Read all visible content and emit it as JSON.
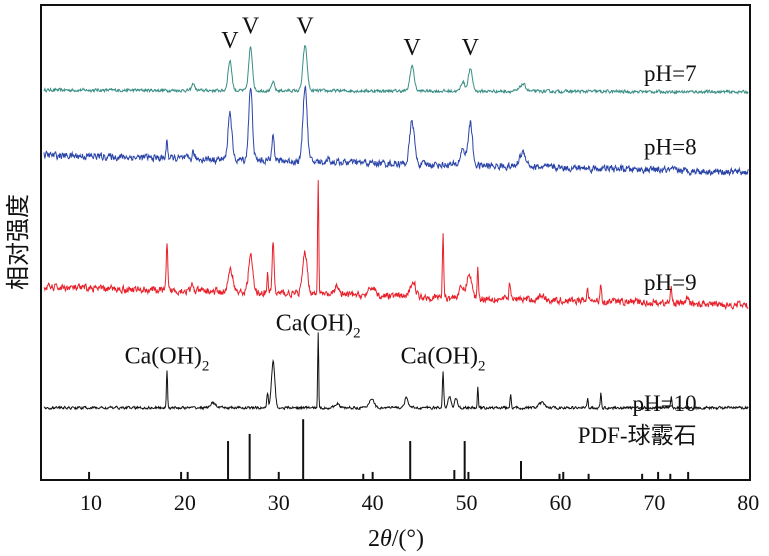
{
  "chart_data": {
    "type": "line",
    "xlabel_parts": [
      "2",
      "θ",
      "/(°)"
    ],
    "ylabel": "相对强度",
    "xlim": [
      5,
      80
    ],
    "ylim": [
      0,
      100
    ],
    "xticks": [
      10,
      20,
      30,
      40,
      50,
      60,
      70,
      80
    ],
    "grid": false,
    "legend": "none",
    "series": [
      {
        "name": "pH=7",
        "color": "#3a8f85",
        "baseline": [
          82.1,
          81.7
        ],
        "noise": 0.35,
        "peaks": [
          [
            20.9,
            1.5,
            0.15
          ],
          [
            24.8,
            6.3,
            0.2
          ],
          [
            27.0,
            9,
            0.2
          ],
          [
            29.4,
            1.8,
            0.15
          ],
          [
            32.8,
            9.5,
            0.22
          ],
          [
            44.2,
            5.3,
            0.22
          ],
          [
            49.6,
            2,
            0.2
          ],
          [
            50.4,
            4.6,
            0.22
          ],
          [
            56.0,
            1.5,
            0.3
          ]
        ]
      },
      {
        "name": "pH=8",
        "color": "#2a44a8",
        "baseline": [
          68.4,
          64.8
        ],
        "noise": 0.8,
        "peaks": [
          [
            18.1,
            4,
            0.08
          ],
          [
            20.9,
            1.5,
            0.1
          ],
          [
            24.8,
            10,
            0.2
          ],
          [
            27.0,
            15,
            0.2
          ],
          [
            29.4,
            6.3,
            0.12
          ],
          [
            32.8,
            16,
            0.22
          ],
          [
            35.3,
            1.2,
            0.1
          ],
          [
            44.2,
            9,
            0.25
          ],
          [
            49.6,
            3.5,
            0.25
          ],
          [
            50.4,
            9,
            0.22
          ],
          [
            56.0,
            3,
            0.35
          ]
        ]
      },
      {
        "name": "pH=9",
        "color": "#e8202a",
        "baseline": [
          40.6,
          36.8
        ],
        "noise": 0.8,
        "peaks": [
          [
            18.1,
            9.3,
            0.08
          ],
          [
            20.8,
            1.5,
            0.1
          ],
          [
            24.9,
            4.6,
            0.25
          ],
          [
            27.0,
            7.8,
            0.22
          ],
          [
            28.8,
            4,
            0.06
          ],
          [
            29.4,
            11,
            0.1
          ],
          [
            32.8,
            8.4,
            0.25
          ],
          [
            34.2,
            24.4,
            0.06
          ],
          [
            36.2,
            2,
            0.2
          ],
          [
            40.0,
            1.8,
            0.3
          ],
          [
            44.3,
            3.5,
            0.25
          ],
          [
            47.5,
            13.3,
            0.07
          ],
          [
            49.5,
            2,
            0.3
          ],
          [
            50.3,
            5,
            0.25
          ],
          [
            51.2,
            6.5,
            0.07
          ],
          [
            54.6,
            3.5,
            0.08
          ],
          [
            58.0,
            1,
            0.3
          ],
          [
            62.9,
            2,
            0.1
          ],
          [
            64.3,
            4,
            0.08
          ],
          [
            71.8,
            3,
            0.1
          ],
          [
            73.5,
            1,
            0.2
          ]
        ]
      },
      {
        "name": "pH=10",
        "color": "#111111",
        "baseline": [
          15.2,
          15.2
        ],
        "noise": 0.3,
        "peaks": [
          [
            18.1,
            8,
            0.06
          ],
          [
            23.0,
            1,
            0.3
          ],
          [
            28.8,
            3,
            0.08
          ],
          [
            29.4,
            9.7,
            0.18
          ],
          [
            34.2,
            15.8,
            0.05
          ],
          [
            36.2,
            1,
            0.2
          ],
          [
            39.9,
            2,
            0.25
          ],
          [
            43.6,
            2,
            0.2
          ],
          [
            47.5,
            7.4,
            0.07
          ],
          [
            48.2,
            2.5,
            0.15
          ],
          [
            48.9,
            2,
            0.15
          ],
          [
            51.2,
            4.4,
            0.05
          ],
          [
            54.7,
            3,
            0.06
          ],
          [
            58.0,
            1,
            0.3
          ],
          [
            62.9,
            2,
            0.06
          ],
          [
            64.3,
            3,
            0.06
          ],
          [
            71.8,
            2.5,
            0.06
          ]
        ]
      }
    ],
    "reference": {
      "name": "PDF-球霰石",
      "sticks": [
        [
          9.8,
          1.7
        ],
        [
          19.6,
          1.7
        ],
        [
          20.3,
          1.7
        ],
        [
          24.6,
          8.2
        ],
        [
          26.9,
          9.7
        ],
        [
          30.0,
          1.7
        ],
        [
          32.6,
          12.8
        ],
        [
          39.0,
          1.3
        ],
        [
          40.0,
          1.7
        ],
        [
          44.0,
          8.2
        ],
        [
          48.7,
          2.1
        ],
        [
          49.8,
          8.2
        ],
        [
          50.2,
          1.7
        ],
        [
          55.8,
          4.0
        ],
        [
          59.9,
          1.3
        ],
        [
          60.3,
          1.7
        ],
        [
          63.0,
          1.3
        ],
        [
          68.7,
          1.3
        ],
        [
          70.4,
          1.7
        ],
        [
          71.7,
          1.3
        ],
        [
          73.6,
          1.7
        ]
      ]
    },
    "annotations": [
      {
        "text": "V",
        "x": 24.8,
        "y": 91
      },
      {
        "text": "V",
        "x": 27.0,
        "y": 94
      },
      {
        "text": "V",
        "x": 32.8,
        "y": 94
      },
      {
        "text": "V",
        "x": 44.2,
        "y": 89.5
      },
      {
        "text": "V",
        "x": 50.4,
        "y": 89.5
      },
      {
        "text": "Ca(OH)",
        "sub": "2",
        "x": 18.1,
        "y": 24.5
      },
      {
        "text": "Ca(OH)",
        "sub": "2",
        "x": 34.2,
        "y": 31.5
      },
      {
        "text": "Ca(OH)",
        "sub": "2",
        "x": 47.5,
        "y": 24.5
      }
    ],
    "series_labels": [
      {
        "text": "pH=7",
        "x": 74.5,
        "y": 84
      },
      {
        "text": "pH=8",
        "x": 74.5,
        "y": 68.5
      },
      {
        "text": "pH=9",
        "x": 74.5,
        "y": 40
      },
      {
        "text": "pH=10",
        "x": 74.5,
        "y": 14.5
      },
      {
        "text": "PDF-球霰石",
        "x": 74.5,
        "y": 7.8
      }
    ]
  }
}
